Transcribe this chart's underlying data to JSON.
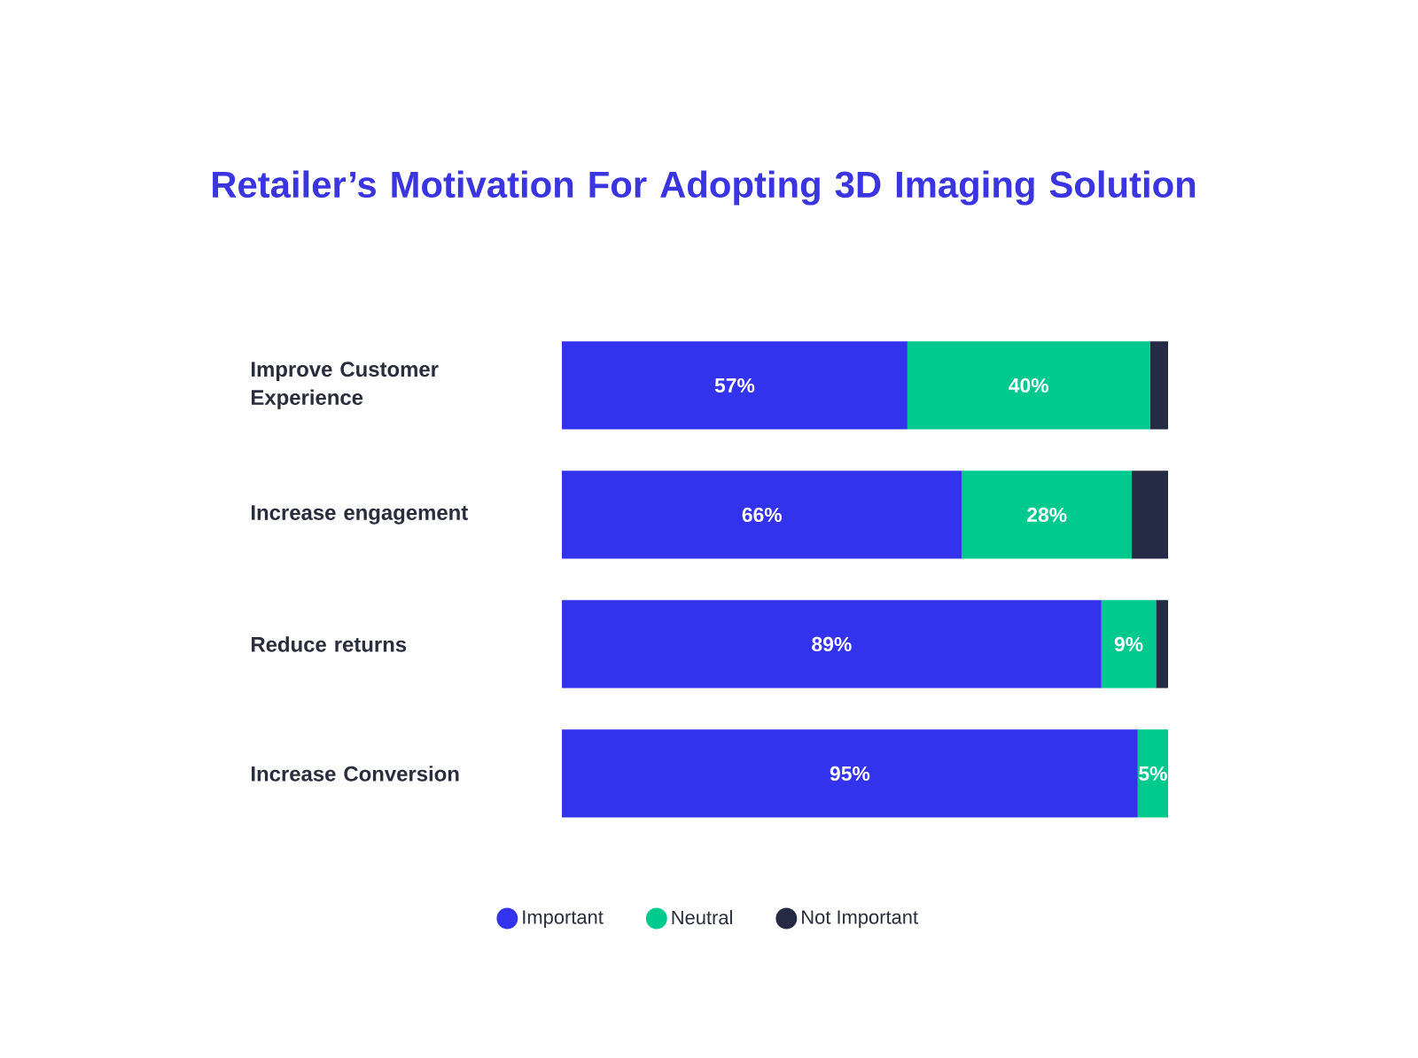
{
  "chart_data": {
    "type": "bar",
    "orientation": "horizontal",
    "stacked": true,
    "title": "Retailer’s Motivation For Adopting 3D Imaging Solution",
    "categories": [
      "Improve Customer Experience",
      "Increase engagement",
      "Reduce returns",
      "Increase Conversion"
    ],
    "series": [
      {
        "name": "Important",
        "color": "#3333ee",
        "values": [
          57,
          66,
          89,
          95
        ],
        "value_labels": [
          "57%",
          "66%",
          "89%",
          "95%"
        ]
      },
      {
        "name": "Neutral",
        "color": "#00c98d",
        "values": [
          40,
          28,
          9,
          5
        ],
        "value_labels": [
          "40%",
          "28%",
          "9%",
          "5%"
        ]
      },
      {
        "name": "Not Important",
        "color": "#252a45",
        "values": [
          3,
          6,
          2,
          0
        ],
        "value_labels": [
          null,
          null,
          null,
          null
        ]
      }
    ],
    "legend": "bottom"
  }
}
